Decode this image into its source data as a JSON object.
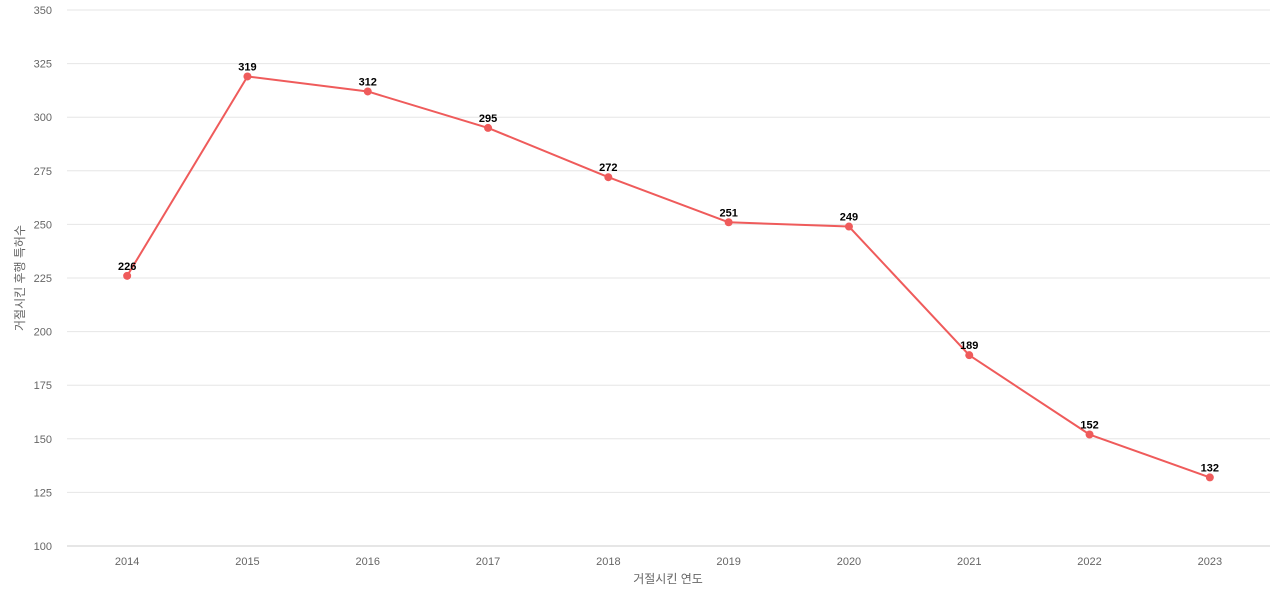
{
  "chart_data": {
    "type": "line",
    "title": "",
    "xlabel": "거절시킨 연도",
    "ylabel": "거절시킨 후행 특허수",
    "categories": [
      "2014",
      "2015",
      "2016",
      "2017",
      "2018",
      "2019",
      "2020",
      "2021",
      "2022",
      "2023"
    ],
    "series": [
      {
        "values": [
          226,
          319,
          312,
          295,
          272,
          251,
          249,
          189,
          152,
          132
        ]
      }
    ],
    "ylim": [
      100,
      350
    ],
    "yticks": [
      100,
      125,
      150,
      175,
      200,
      225,
      250,
      275,
      300,
      325,
      350
    ],
    "grid": true,
    "data_labels": true,
    "colors": {
      "line": "#ef5b5b",
      "marker": "#ef5b5b",
      "grid": "#e6e6e6",
      "tick_text": "#666666",
      "label_text": "#000000"
    }
  }
}
